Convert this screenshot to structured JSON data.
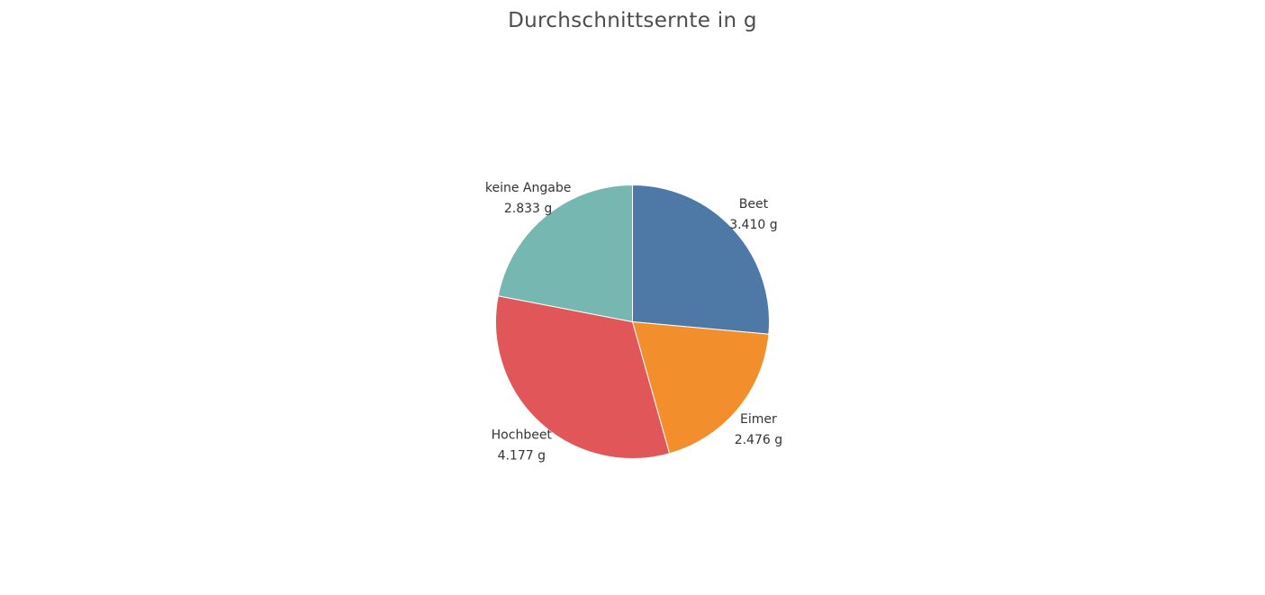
{
  "chart_data": {
    "type": "pie",
    "title": "Durchschnittsernte in g",
    "unit": "g",
    "slices": [
      {
        "label": "Beet",
        "value": 3410,
        "value_label": "3.410 g",
        "color": "#4e79a7"
      },
      {
        "label": "Eimer",
        "value": 2476,
        "value_label": "2.476 g",
        "color": "#f28e2b"
      },
      {
        "label": "Hochbeet",
        "value": 4177,
        "value_label": "4.177 g",
        "color": "#e15759"
      },
      {
        "label": "keine Angabe",
        "value": 2833,
        "value_label": "2.833 g",
        "color": "#76b7b2"
      }
    ],
    "start_angle": "12 o'clock",
    "direction": "clockwise",
    "legend": "none",
    "labels": "outside"
  }
}
